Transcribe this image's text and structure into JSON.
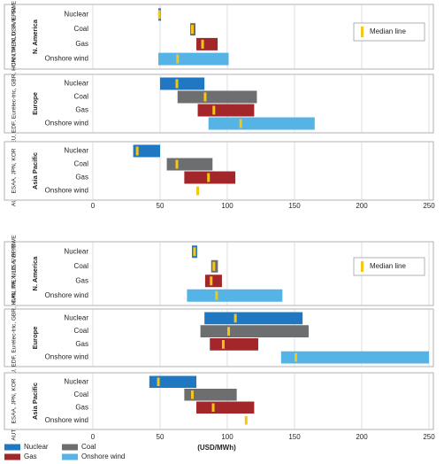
{
  "chart_data": [
    {
      "type": "range_bar",
      "median_label": "Median line",
      "categories": [
        "Nuclear",
        "Coal",
        "Gas",
        "Onshore wind"
      ],
      "xlim": [
        0,
        250
      ],
      "xticks": [
        0,
        50,
        100,
        150,
        200,
        250
      ],
      "grid": true,
      "groups": [
        {
          "name": "N. America",
          "countries": "CAN, MEX, USA, EPRI",
          "min": [
            48.7,
            72.4,
            77,
            48.7
          ],
          "max": [
            50.7,
            76.3,
            92.8,
            101
          ],
          "median": [
            49.5,
            74,
            81.6,
            63
          ]
        },
        {
          "name": "Europe",
          "countries": "AUT, BEL, CHE, CZE, DEU, EDF, Eurélec-tric, GBR, HUN, ITA, NLD, SVK, SWE",
          "min": [
            50,
            63,
            78,
            86
          ],
          "max": [
            83,
            122,
            120,
            165
          ],
          "median": [
            62.5,
            83.5,
            90,
            110
          ]
        },
        {
          "name": "Asia Pacific",
          "countries": "ESAA, JPN, KOR",
          "min": [
            30,
            55,
            68,
            null
          ],
          "max": [
            50,
            89,
            106,
            null
          ],
          "median": [
            33,
            62.5,
            86,
            78
          ]
        }
      ]
    },
    {
      "type": "range_bar",
      "median_label": "Median line",
      "x_label": "(USD/MWh)",
      "categories": [
        "Nuclear",
        "Coal",
        "Gas",
        "Onshore wind"
      ],
      "xlim": [
        0,
        250
      ],
      "xticks": [
        0,
        50,
        100,
        150,
        200,
        250
      ],
      "grid": true,
      "groups": [
        {
          "name": "N. America",
          "countries": "CAN, MEX, USA, EPRI",
          "min": [
            73.7,
            88,
            83.5,
            70
          ],
          "max": [
            77.6,
            93,
            96,
            141
          ],
          "median": [
            75.6,
            90,
            88,
            92
          ]
        },
        {
          "name": "Europe",
          "countries": "AUT, BEL, CHE, CZE, DEU, EDF, Eurélec-tric, GBR, HUN, ITA, NLD, SVK, SWE",
          "min": [
            83,
            80,
            87,
            140
          ],
          "max": [
            156,
            160.5,
            123,
            250
          ],
          "median": [
            106,
            101,
            97,
            151
          ]
        },
        {
          "name": "Asia Pacific",
          "countries": "ESAA, JPN, KOR",
          "min": [
            42,
            68,
            77,
            null
          ],
          "max": [
            77,
            107,
            120,
            null
          ],
          "median": [
            48.7,
            74,
            89.5,
            114
          ]
        }
      ]
    }
  ],
  "legend": [
    {
      "name": "Nuclear",
      "color": "#1f78c1"
    },
    {
      "name": "Coal",
      "color": "#6d6e70"
    },
    {
      "name": "Gas",
      "color": "#a3262a"
    },
    {
      "name": "Onshore wind",
      "color": "#55b3e6"
    }
  ],
  "median_color": "#f5c518"
}
